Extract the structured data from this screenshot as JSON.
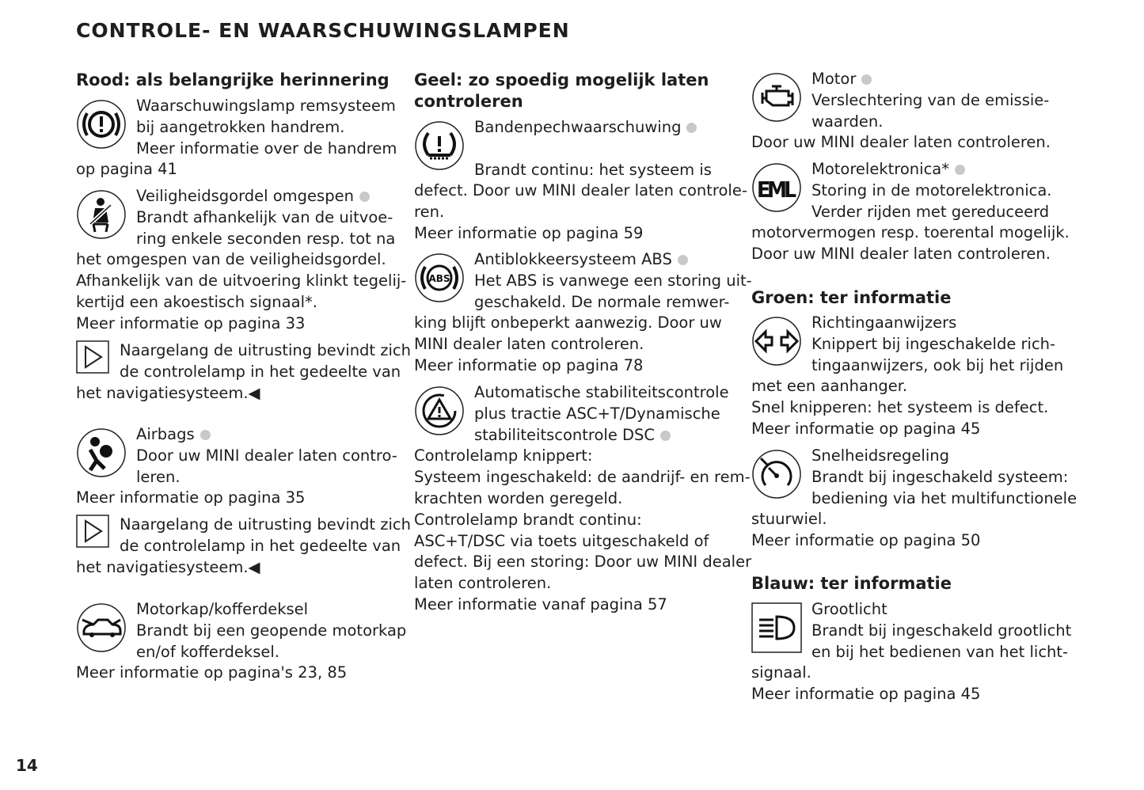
{
  "page_title": "CONTROLE- EN WAARSCHUWINGSLAMPEN",
  "page_number": "14",
  "headings": {
    "red": "Rood: als belangrijke herinnering",
    "yellow_1": "Geel: zo spoedig mogelijk laten",
    "yellow_2": "controleren",
    "green": "Groen: ter informatie",
    "blue": "Blauw: ter informatie"
  },
  "entries": [
    {
      "icon": "brake-warning-icon",
      "dot": false,
      "lines": [
        "Waarschuwingslamp remsysteem",
        "bij aangetrokken handrem.",
        "Meer informatie over de handrem",
        "op pagina 41"
      ]
    },
    {
      "icon": "seatbelt-icon",
      "dot": true,
      "lines": [
        "Veiligheidsgordel omgespen",
        "Brandt afhankelijk van de uitvoe-",
        "ring enkele seconden resp. tot na",
        "het omgespen van de veiligheidsgordel.",
        "Afhankelijk van de uitvoering klinkt tegelij-",
        "kertijd een akoestisch signaal*.",
        "Meer informatie op pagina 33"
      ]
    },
    {
      "icon": "note-triangle-icon",
      "dot": false,
      "lines": [
        "Naargelang de uitrusting bevindt zich",
        "de controlelamp in het gedeelte van",
        "het navigatiesysteem.◀"
      ]
    },
    {
      "icon": "airbag-icon",
      "dot": true,
      "lines": [
        "Airbags",
        "Door uw MINI dealer laten contro-",
        "leren.",
        "Meer informatie op pagina 35"
      ]
    },
    {
      "icon": "note-triangle-icon",
      "dot": false,
      "lines": [
        "Naargelang de uitrusting bevindt zich",
        "de controlelamp in het gedeelte van",
        "het navigatiesysteem.◀"
      ]
    },
    {
      "icon": "hood-trunk-icon",
      "dot": false,
      "lines": [
        "Motorkap/kofferdeksel",
        "Brandt bij een geopende motorkap",
        "en/of kofferdeksel.",
        "Meer informatie op pagina's 23, 85"
      ]
    },
    {
      "icon": "tire-pressure-icon",
      "dot": true,
      "lines": [
        "Bandenpechwaarschuwing",
        "",
        "Brandt continu: het systeem is",
        "defect. Door uw MINI dealer laten controle-",
        "ren.",
        "Meer informatie op pagina 59"
      ]
    },
    {
      "icon": "abs-icon",
      "dot": true,
      "lines": [
        "Antiblokkeersysteem ABS",
        "Het ABS is vanwege een storing uit-",
        "geschakeld. De normale remwer-",
        "king blijft onbeperkt aanwezig. Door uw",
        "MINI dealer laten controleren.",
        "Meer informatie op pagina 78"
      ]
    },
    {
      "icon": "stability-control-icon",
      "dot": false,
      "dot_line": 2,
      "lines": [
        "Automatische stabiliteitscontrole",
        "plus tractie ASC+T/Dynamische",
        "stabiliteitscontrole DSC",
        "Controlelamp knippert:",
        "Systeem ingeschakeld: de aandrijf- en rem-",
        "krachten worden geregeld.",
        "Controlelamp brandt continu:",
        "ASC+T/DSC via toets uitgeschakeld of",
        "defect. Bij een storing: Door uw MINI dealer",
        "laten controleren.",
        "Meer informatie vanaf pagina 57"
      ]
    },
    {
      "icon": "engine-icon",
      "dot": true,
      "lines": [
        "Motor",
        "Verslechtering van de emissie-",
        "waarden.",
        "Door uw MINI dealer laten controleren."
      ]
    },
    {
      "icon": "eml-icon",
      "dot": true,
      "lines": [
        "Motorelektronica*",
        "Storing in de motorelektronica.",
        "Verder rijden met gereduceerd",
        "motorvermogen resp. toerental mogelijk.",
        "Door uw MINI dealer laten controleren."
      ]
    },
    {
      "icon": "turn-signal-icon",
      "dot": false,
      "lines": [
        "Richtingaanwijzers",
        "Knippert bij ingeschakelde rich-",
        "tingaanwijzers, ook bij het rijden",
        "met een aanhanger.",
        "Snel knipperen: het systeem is defect.",
        "Meer informatie op pagina 45"
      ]
    },
    {
      "icon": "cruise-control-icon",
      "dot": false,
      "lines": [
        "Snelheidsregeling",
        "Brandt bij ingeschakeld systeem:",
        "bediening via het multifunctionele",
        "stuurwiel.",
        "Meer informatie op pagina 50"
      ]
    },
    {
      "icon": "high-beam-icon",
      "dot": false,
      "lines": [
        "Grootlicht",
        "Brandt bij ingeschakeld grootlicht",
        "en bij het bedienen van het licht-",
        "signaal.",
        "Meer informatie op pagina 45"
      ]
    }
  ],
  "colors": {
    "text": "#1e1e1e",
    "indicator_dot": "#c8c8c8"
  }
}
